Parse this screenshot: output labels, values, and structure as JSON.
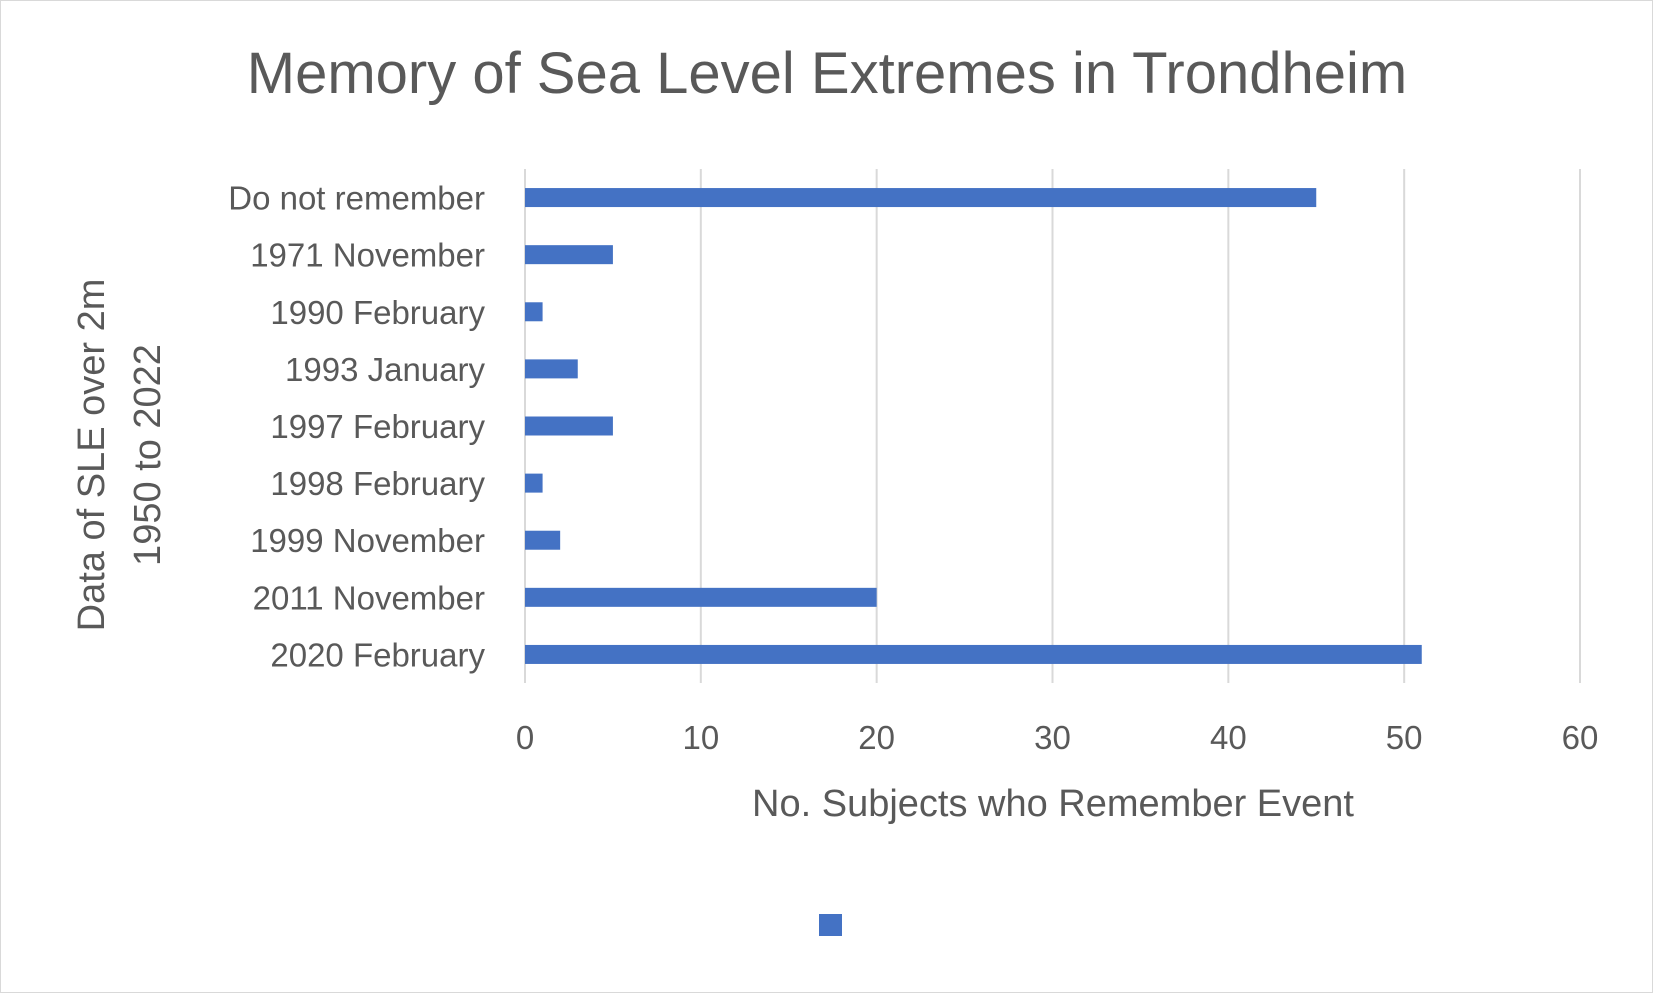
{
  "chart_data": {
    "type": "bar",
    "orientation": "horizontal",
    "title": "Memory of Sea Level Extremes in Trondheim",
    "xlabel": "No. Subjects who Remember Event",
    "ylabel_lines": [
      "Data of SLE over 2m",
      "1950 to 2022"
    ],
    "categories": [
      "Do not remember",
      "1971 November",
      "1990 February",
      "1993 January",
      "1997 February",
      "1998 February",
      "1999 November",
      "2011 November",
      "2020 February"
    ],
    "series": [
      {
        "values": [
          45,
          5,
          1,
          3,
          5,
          1,
          2,
          20,
          51
        ],
        "color": "#4472C4"
      }
    ],
    "xlim": [
      0,
      60
    ],
    "xticks": [
      0,
      10,
      20,
      30,
      40,
      50,
      60
    ],
    "grid": "vertical",
    "legend": "bottom-center"
  }
}
